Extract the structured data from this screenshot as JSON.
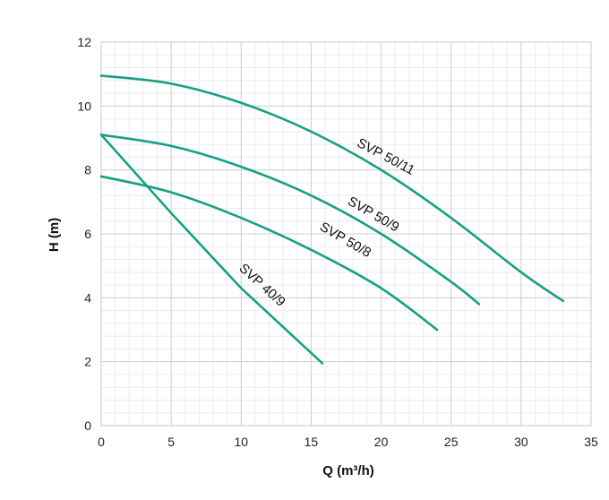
{
  "chart_data": {
    "type": "line",
    "xlabel": "Q (m³/h)",
    "ylabel": "H (m)",
    "xlim": [
      0,
      35
    ],
    "ylim": [
      0,
      12
    ],
    "xticks": [
      0,
      5,
      10,
      15,
      20,
      25,
      30,
      35
    ],
    "yticks": [
      0,
      2,
      4,
      6,
      8,
      10,
      12
    ],
    "minor_grid_x_step": 1,
    "minor_grid_y_step": 0.4,
    "grid": true,
    "line_color": "#17a085",
    "grid_major_color": "#d0d0d0",
    "grid_minor_color": "#ececec",
    "series": [
      {
        "name": "SVP 50/11",
        "x": [
          0,
          5,
          10,
          15,
          20,
          25,
          30,
          33
        ],
        "y": [
          10.95,
          10.7,
          10.1,
          9.2,
          8.0,
          6.5,
          4.8,
          3.9
        ]
      },
      {
        "name": "SVP 50/9",
        "x": [
          0,
          5,
          10,
          15,
          20,
          25,
          27
        ],
        "y": [
          9.1,
          8.75,
          8.1,
          7.2,
          6.0,
          4.5,
          3.8
        ]
      },
      {
        "name": "SVP 50/8",
        "x": [
          0,
          5,
          10,
          15,
          20,
          24
        ],
        "y": [
          7.8,
          7.3,
          6.5,
          5.5,
          4.3,
          3.0
        ]
      },
      {
        "name": "SVP 40/9",
        "x": [
          0,
          5,
          10,
          15.8
        ],
        "y": [
          9.1,
          6.65,
          4.3,
          1.95
        ]
      }
    ],
    "series_labels": [
      {
        "text": "SVP 50/11",
        "x": 20.2,
        "y": 8.3,
        "angle": 28
      },
      {
        "text": "SVP 50/9",
        "x": 19.3,
        "y": 6.5,
        "angle": 30
      },
      {
        "text": "SVP 50/8",
        "x": 17.3,
        "y": 5.7,
        "angle": 30
      },
      {
        "text": "SVP 40/9",
        "x": 11.3,
        "y": 4.3,
        "angle": 42
      }
    ]
  }
}
